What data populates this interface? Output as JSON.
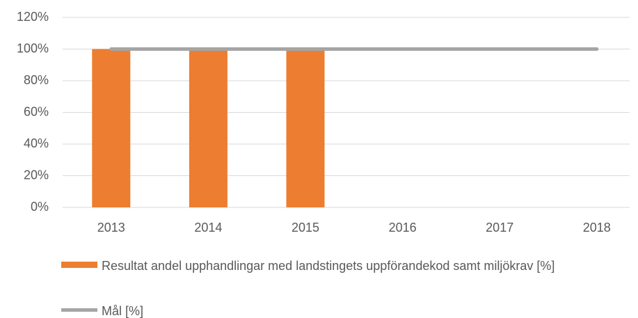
{
  "chart_data": {
    "type": "bar_line",
    "categories": [
      "2013",
      "2014",
      "2015",
      "2016",
      "2017",
      "2018"
    ],
    "series": [
      {
        "name": "Resultat andel upphandlingar med landstingets uppförandekod samt miljökrav [%]",
        "type": "bar",
        "color": "#ed7d31",
        "values": [
          100,
          100,
          100,
          null,
          null,
          null
        ]
      },
      {
        "name": "Mål [%]",
        "type": "line",
        "color": "#a5a5a5",
        "values": [
          100,
          100,
          100,
          100,
          100,
          100
        ]
      }
    ],
    "ylim": [
      0,
      120
    ],
    "yticks": [
      {
        "value": 0,
        "label": "0%"
      },
      {
        "value": 20,
        "label": "20%"
      },
      {
        "value": 40,
        "label": "40%"
      },
      {
        "value": 60,
        "label": "60%"
      },
      {
        "value": 80,
        "label": "80%"
      },
      {
        "value": 100,
        "label": "100%"
      },
      {
        "value": 120,
        "label": "120%"
      }
    ],
    "grid": true,
    "legend": "bottom"
  }
}
